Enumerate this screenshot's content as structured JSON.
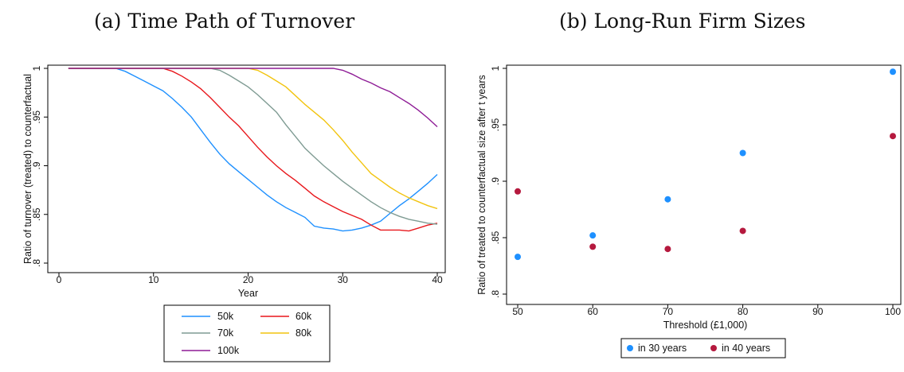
{
  "panel_a_title": "(a) Time Path of Turnover",
  "panel_b_title": "(b) Long-Run Firm Sizes",
  "chart_data": [
    {
      "type": "line",
      "title": "(a) Time Path of Turnover",
      "xlabel": "Year",
      "ylabel": "Ratio of turnover (treated) to counterfactual",
      "xlim": [
        0,
        40
      ],
      "ylim": [
        0.8,
        1
      ],
      "xticks": [
        0,
        10,
        20,
        30,
        40
      ],
      "yticks": [
        0.8,
        0.85,
        0.9,
        0.95,
        1
      ],
      "yticklabels": [
        ".8",
        ".85",
        ".9",
        ".95",
        "1"
      ],
      "grid": false,
      "legend": "bottom",
      "series": [
        {
          "name": "50k",
          "color": "#1e90ff",
          "x": [
            1,
            2,
            3,
            4,
            5,
            6,
            7,
            8,
            9,
            10,
            11,
            12,
            13,
            14,
            15,
            16,
            17,
            18,
            19,
            20,
            21,
            22,
            23,
            24,
            25,
            26,
            27,
            28,
            29,
            30,
            31,
            32,
            33,
            34,
            35,
            36,
            37,
            38,
            39,
            40
          ],
          "y": [
            1,
            1,
            1,
            1,
            1,
            1,
            0.997,
            0.992,
            0.987,
            0.982,
            0.977,
            0.969,
            0.96,
            0.95,
            0.937,
            0.924,
            0.912,
            0.902,
            0.894,
            0.886,
            0.878,
            0.87,
            0.863,
            0.857,
            0.852,
            0.847,
            0.838,
            0.836,
            0.835,
            0.833,
            0.834,
            0.836,
            0.839,
            0.843,
            0.851,
            0.859,
            0.866,
            0.874,
            0.882,
            0.891
          ]
        },
        {
          "name": "60k",
          "color": "#e8171c",
          "x": [
            1,
            2,
            3,
            4,
            5,
            6,
            7,
            8,
            9,
            10,
            11,
            12,
            13,
            14,
            15,
            16,
            17,
            18,
            19,
            20,
            21,
            22,
            23,
            24,
            25,
            26,
            27,
            28,
            29,
            30,
            31,
            32,
            33,
            34,
            35,
            36,
            37,
            38,
            39,
            40
          ],
          "y": [
            1,
            1,
            1,
            1,
            1,
            1,
            1,
            1,
            1,
            1,
            1,
            0.997,
            0.992,
            0.986,
            0.979,
            0.97,
            0.96,
            0.95,
            0.941,
            0.93,
            0.919,
            0.909,
            0.9,
            0.892,
            0.885,
            0.877,
            0.869,
            0.863,
            0.858,
            0.853,
            0.849,
            0.845,
            0.839,
            0.834,
            0.834,
            0.834,
            0.833,
            0.836,
            0.839,
            0.841
          ]
        },
        {
          "name": "70k",
          "color": "#7f9b93",
          "x": [
            1,
            2,
            3,
            4,
            5,
            6,
            7,
            8,
            9,
            10,
            11,
            12,
            13,
            14,
            15,
            16,
            17,
            18,
            19,
            20,
            21,
            22,
            23,
            24,
            25,
            26,
            27,
            28,
            29,
            30,
            31,
            32,
            33,
            34,
            35,
            36,
            37,
            38,
            39,
            40
          ],
          "y": [
            1,
            1,
            1,
            1,
            1,
            1,
            1,
            1,
            1,
            1,
            1,
            1,
            1,
            1,
            1,
            1,
            0.998,
            0.993,
            0.987,
            0.981,
            0.973,
            0.964,
            0.955,
            0.942,
            0.93,
            0.918,
            0.909,
            0.9,
            0.892,
            0.884,
            0.877,
            0.87,
            0.863,
            0.857,
            0.852,
            0.848,
            0.845,
            0.843,
            0.841,
            0.84
          ]
        },
        {
          "name": "80k",
          "color": "#f2c40f",
          "x": [
            1,
            2,
            3,
            4,
            5,
            6,
            7,
            8,
            9,
            10,
            11,
            12,
            13,
            14,
            15,
            16,
            17,
            18,
            19,
            20,
            21,
            22,
            23,
            24,
            25,
            26,
            27,
            28,
            29,
            30,
            31,
            32,
            33,
            34,
            35,
            36,
            37,
            38,
            39,
            40
          ],
          "y": [
            1,
            1,
            1,
            1,
            1,
            1,
            1,
            1,
            1,
            1,
            1,
            1,
            1,
            1,
            1,
            1,
            1,
            1,
            1,
            1,
            0.998,
            0.993,
            0.987,
            0.981,
            0.972,
            0.963,
            0.955,
            0.947,
            0.937,
            0.926,
            0.914,
            0.903,
            0.892,
            0.885,
            0.878,
            0.872,
            0.867,
            0.863,
            0.859,
            0.856
          ]
        },
        {
          "name": "100k",
          "color": "#8e1c96",
          "x": [
            1,
            2,
            3,
            4,
            5,
            6,
            7,
            8,
            9,
            10,
            11,
            12,
            13,
            14,
            15,
            16,
            17,
            18,
            19,
            20,
            21,
            22,
            23,
            24,
            25,
            26,
            27,
            28,
            29,
            30,
            31,
            32,
            33,
            34,
            35,
            36,
            37,
            38,
            39,
            40
          ],
          "y": [
            1,
            1,
            1,
            1,
            1,
            1,
            1,
            1,
            1,
            1,
            1,
            1,
            1,
            1,
            1,
            1,
            1,
            1,
            1,
            1,
            1,
            1,
            1,
            1,
            1,
            1,
            1,
            1,
            1,
            0.998,
            0.994,
            0.989,
            0.985,
            0.98,
            0.976,
            0.97,
            0.964,
            0.957,
            0.949,
            0.94
          ]
        }
      ]
    },
    {
      "type": "scatter",
      "title": "(b) Long-Run Firm Sizes",
      "xlabel": "Threshold (£1,000)",
      "ylabel": "Ratio  of treated to counterfactual size after t years",
      "xlim": [
        50,
        100
      ],
      "ylim": [
        0.8,
        1
      ],
      "xticks": [
        50,
        60,
        70,
        80,
        90,
        100
      ],
      "yticks": [
        0.8,
        0.85,
        0.9,
        0.95,
        1
      ],
      "yticklabels": [
        ".8",
        ".85",
        ".9",
        ".95",
        "1"
      ],
      "grid": false,
      "legend": "bottom",
      "series": [
        {
          "name": "in 30 years",
          "color": "#1e90ff",
          "x": [
            50,
            60,
            70,
            80,
            100
          ],
          "y": [
            0.833,
            0.852,
            0.884,
            0.925,
            0.997
          ]
        },
        {
          "name": "in 40 years",
          "color": "#b5193e",
          "x": [
            50,
            60,
            70,
            80,
            100
          ],
          "y": [
            0.891,
            0.842,
            0.84,
            0.856,
            0.94
          ]
        }
      ]
    }
  ]
}
